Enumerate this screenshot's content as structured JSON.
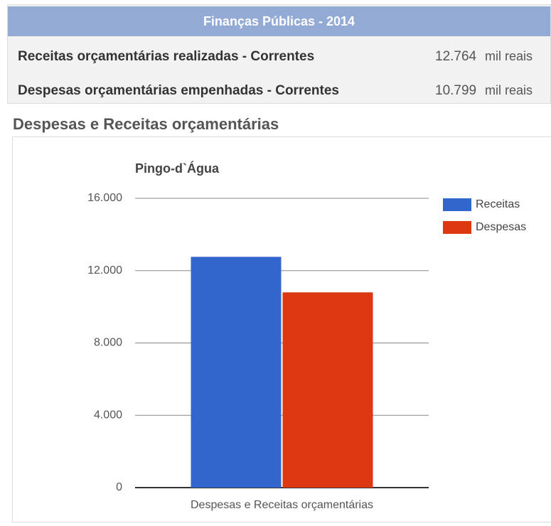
{
  "table": {
    "title": "Finanças Públicas - 2014",
    "rows": [
      [
        "Receitas orçamentárias realizadas - Correntes",
        "12.764",
        "mil reais"
      ],
      [
        "Despesas orçamentárias empenhadas - Correntes",
        "10.799",
        "mil reais"
      ]
    ]
  },
  "heading": "Despesas e Receitas orçamentárias",
  "chart_data": {
    "type": "bar",
    "title": "Pingo-d`Água",
    "categories": [
      "Despesas e Receitas orçamentárias"
    ],
    "series": [
      {
        "name": "Receitas",
        "color": "#3366cc",
        "values": [
          12764
        ]
      },
      {
        "name": "Despesas",
        "color": "#dc3912",
        "values": [
          10799
        ]
      }
    ],
    "ylim": [
      0,
      16000
    ],
    "yticks": [
      0,
      {
        "value": 4000,
        "label": "4.000"
      },
      {
        "value": 8000,
        "label": "8.000"
      },
      {
        "value": 12000,
        "label": "12.000"
      },
      {
        "value": 16000,
        "label": "16.000"
      }
    ],
    "grid": true,
    "legend": "right"
  }
}
